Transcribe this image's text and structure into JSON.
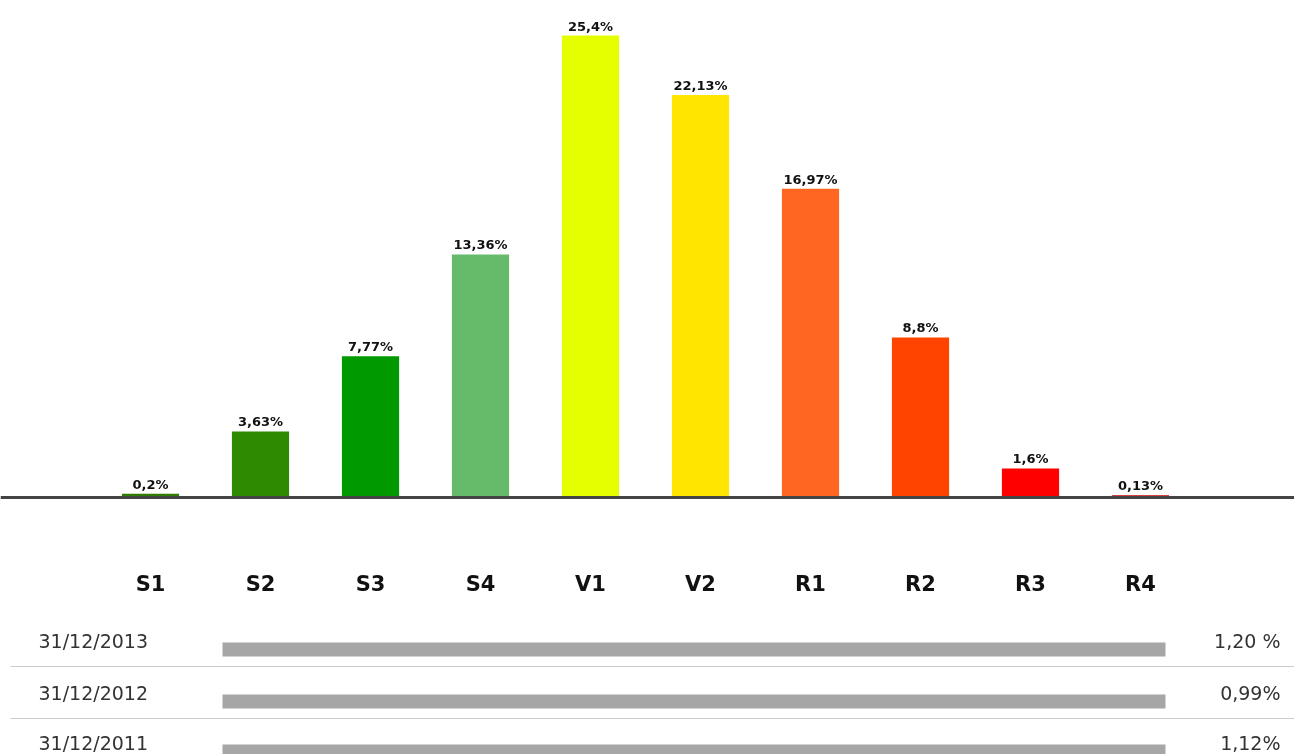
{
  "chart_data": {
    "type": "bar",
    "categories": [
      "S1",
      "S2",
      "S3",
      "S4",
      "V1",
      "V2",
      "R1",
      "R2",
      "R3",
      "R4"
    ],
    "values": [
      0.2,
      3.63,
      7.77,
      13.36,
      25.4,
      22.13,
      16.97,
      8.8,
      1.6,
      0.13
    ],
    "colors": [
      "#2e7d00",
      "#2e8a00",
      "#009900",
      "#66bb6a",
      "#e6ff00",
      "#ffe600",
      "#ff6622",
      "#ff4400",
      "#ff0000",
      "#cc0000"
    ],
    "value_labels": [
      "0,2%",
      "3,63%",
      "7,77%",
      "13,36%",
      "25,4%",
      "22,13%",
      "16,97%",
      "8,8%",
      "1,6%",
      "0,13%"
    ],
    "grid": false,
    "annotations": [
      "31/12/2013",
      "1,20 %",
      "31/12/2012",
      "0,99%",
      "31/12/2011",
      "1,12%"
    ]
  }
}
